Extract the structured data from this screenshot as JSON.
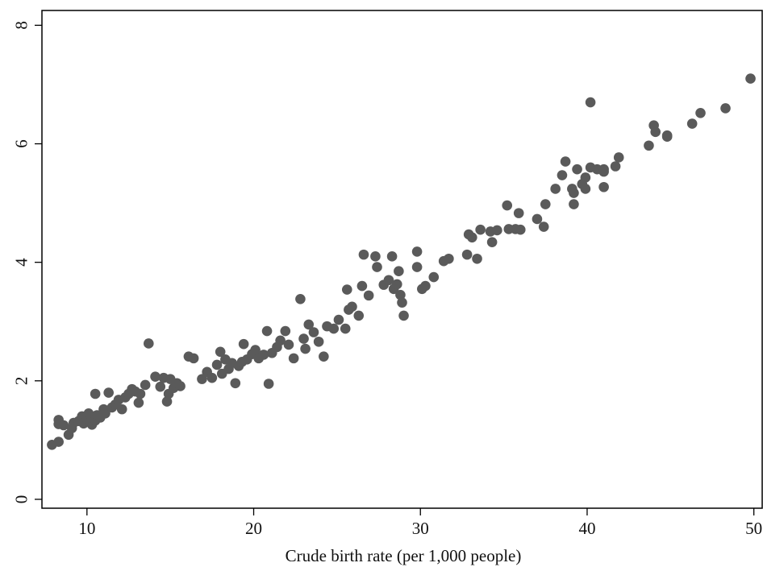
{
  "chart_data": {
    "type": "scatter",
    "xlabel": "Crude birth rate (per 1,000 people)",
    "ylabel": "",
    "xlim": [
      7.3,
      50.5
    ],
    "ylim": [
      -0.15,
      8.25
    ],
    "xticks": [
      10,
      20,
      30,
      40,
      50
    ],
    "yticks": [
      0,
      2,
      4,
      6,
      8
    ],
    "grid": false,
    "marker_color": "#5a5a5a",
    "points": [
      [
        7.9,
        0.92
      ],
      [
        8.3,
        0.97
      ],
      [
        8.3,
        1.27
      ],
      [
        8.3,
        1.34
      ],
      [
        8.6,
        1.25
      ],
      [
        8.9,
        1.09
      ],
      [
        9.1,
        1.2
      ],
      [
        9.2,
        1.29
      ],
      [
        9.5,
        1.32
      ],
      [
        9.7,
        1.4
      ],
      [
        9.8,
        1.28
      ],
      [
        10.0,
        1.36
      ],
      [
        10.1,
        1.45
      ],
      [
        10.2,
        1.3
      ],
      [
        10.3,
        1.26
      ],
      [
        10.5,
        1.33
      ],
      [
        10.6,
        1.42
      ],
      [
        10.5,
        1.78
      ],
      [
        10.8,
        1.38
      ],
      [
        11.0,
        1.52
      ],
      [
        11.1,
        1.45
      ],
      [
        11.3,
        1.8
      ],
      [
        11.5,
        1.55
      ],
      [
        11.7,
        1.6
      ],
      [
        11.9,
        1.68
      ],
      [
        12.1,
        1.52
      ],
      [
        12.3,
        1.72
      ],
      [
        12.5,
        1.78
      ],
      [
        12.7,
        1.86
      ],
      [
        12.9,
        1.82
      ],
      [
        13.1,
        1.63
      ],
      [
        13.2,
        1.78
      ],
      [
        13.5,
        1.93
      ],
      [
        13.7,
        2.63
      ],
      [
        14.1,
        2.07
      ],
      [
        14.4,
        1.9
      ],
      [
        14.6,
        2.05
      ],
      [
        14.8,
        1.65
      ],
      [
        14.9,
        1.78
      ],
      [
        15.0,
        2.03
      ],
      [
        15.2,
        1.88
      ],
      [
        15.4,
        1.96
      ],
      [
        15.6,
        1.91
      ],
      [
        16.1,
        2.41
      ],
      [
        16.4,
        2.38
      ],
      [
        16.9,
        2.03
      ],
      [
        17.2,
        2.15
      ],
      [
        17.5,
        2.05
      ],
      [
        17.8,
        2.27
      ],
      [
        18.0,
        2.49
      ],
      [
        18.1,
        2.12
      ],
      [
        18.3,
        2.36
      ],
      [
        18.5,
        2.2
      ],
      [
        18.7,
        2.3
      ],
      [
        18.9,
        1.96
      ],
      [
        19.1,
        2.25
      ],
      [
        19.3,
        2.32
      ],
      [
        19.4,
        2.62
      ],
      [
        19.6,
        2.36
      ],
      [
        19.9,
        2.45
      ],
      [
        20.1,
        2.52
      ],
      [
        20.3,
        2.38
      ],
      [
        20.6,
        2.44
      ],
      [
        20.8,
        2.84
      ],
      [
        20.9,
        1.95
      ],
      [
        21.1,
        2.47
      ],
      [
        21.4,
        2.57
      ],
      [
        21.6,
        2.68
      ],
      [
        21.9,
        2.84
      ],
      [
        22.1,
        2.61
      ],
      [
        22.4,
        2.38
      ],
      [
        22.8,
        3.38
      ],
      [
        23.0,
        2.71
      ],
      [
        23.1,
        2.54
      ],
      [
        23.3,
        2.95
      ],
      [
        23.6,
        2.82
      ],
      [
        23.9,
        2.66
      ],
      [
        24.2,
        2.41
      ],
      [
        24.4,
        2.92
      ],
      [
        24.8,
        2.88
      ],
      [
        25.1,
        3.03
      ],
      [
        25.5,
        2.88
      ],
      [
        25.6,
        3.54
      ],
      [
        25.7,
        3.2
      ],
      [
        25.9,
        3.25
      ],
      [
        26.3,
        3.1
      ],
      [
        26.5,
        3.6
      ],
      [
        26.6,
        4.13
      ],
      [
        26.9,
        3.44
      ],
      [
        27.3,
        4.1
      ],
      [
        27.4,
        3.92
      ],
      [
        27.8,
        3.62
      ],
      [
        28.1,
        3.7
      ],
      [
        28.3,
        4.1
      ],
      [
        28.4,
        3.55
      ],
      [
        28.6,
        3.63
      ],
      [
        28.7,
        3.85
      ],
      [
        28.8,
        3.45
      ],
      [
        28.9,
        3.32
      ],
      [
        29.0,
        3.1
      ],
      [
        29.8,
        3.92
      ],
      [
        29.8,
        4.18
      ],
      [
        30.1,
        3.55
      ],
      [
        30.3,
        3.6
      ],
      [
        30.8,
        3.75
      ],
      [
        31.4,
        4.02
      ],
      [
        31.7,
        4.06
      ],
      [
        32.8,
        4.13
      ],
      [
        32.9,
        4.47
      ],
      [
        33.1,
        4.42
      ],
      [
        33.4,
        4.06
      ],
      [
        33.6,
        4.55
      ],
      [
        34.2,
        4.52
      ],
      [
        34.3,
        4.34
      ],
      [
        34.6,
        4.54
      ],
      [
        35.2,
        4.96
      ],
      [
        35.3,
        4.56
      ],
      [
        35.7,
        4.56
      ],
      [
        35.9,
        4.83
      ],
      [
        36.0,
        4.55
      ],
      [
        37.0,
        4.73
      ],
      [
        37.4,
        4.6
      ],
      [
        37.5,
        4.98
      ],
      [
        38.1,
        5.24
      ],
      [
        38.5,
        5.47
      ],
      [
        38.7,
        5.7
      ],
      [
        39.1,
        5.24
      ],
      [
        39.2,
        5.17
      ],
      [
        39.2,
        4.98
      ],
      [
        39.4,
        5.57
      ],
      [
        39.7,
        5.32
      ],
      [
        39.9,
        5.43
      ],
      [
        39.9,
        5.24
      ],
      [
        40.2,
        6.7
      ],
      [
        40.2,
        5.6
      ],
      [
        40.6,
        5.57
      ],
      [
        41.0,
        5.57
      ],
      [
        41.0,
        5.53
      ],
      [
        41.0,
        5.27
      ],
      [
        41.7,
        5.62
      ],
      [
        41.9,
        5.77
      ],
      [
        43.7,
        5.97
      ],
      [
        44.0,
        6.31
      ],
      [
        44.1,
        6.2
      ],
      [
        44.8,
        6.14
      ],
      [
        44.8,
        6.12
      ],
      [
        46.3,
        6.34
      ],
      [
        46.8,
        6.52
      ],
      [
        48.3,
        6.6
      ],
      [
        49.8,
        7.1
      ]
    ]
  }
}
